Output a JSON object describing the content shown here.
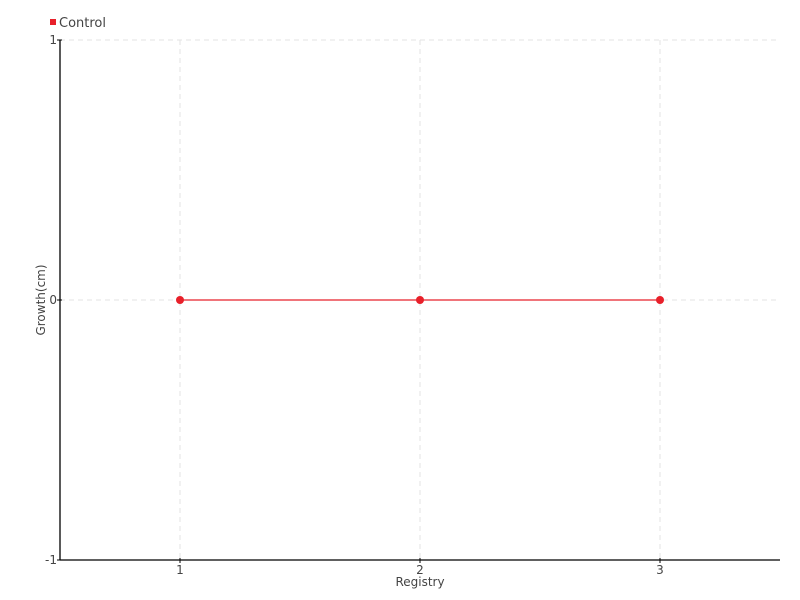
{
  "chart_data": {
    "type": "line",
    "title": "",
    "xlabel": "Registry",
    "ylabel": "Growth(cm)",
    "x": [
      1,
      2,
      3
    ],
    "xlim": [
      0.5,
      3.5
    ],
    "ylim": [
      -1,
      1
    ],
    "xticks": [
      1,
      2,
      3
    ],
    "yticks": [
      -1,
      0,
      1
    ],
    "grid": true,
    "legend_position": "top-left",
    "series": [
      {
        "name": "Control",
        "color": "#e8202a",
        "values": [
          0,
          0,
          0
        ]
      }
    ]
  }
}
